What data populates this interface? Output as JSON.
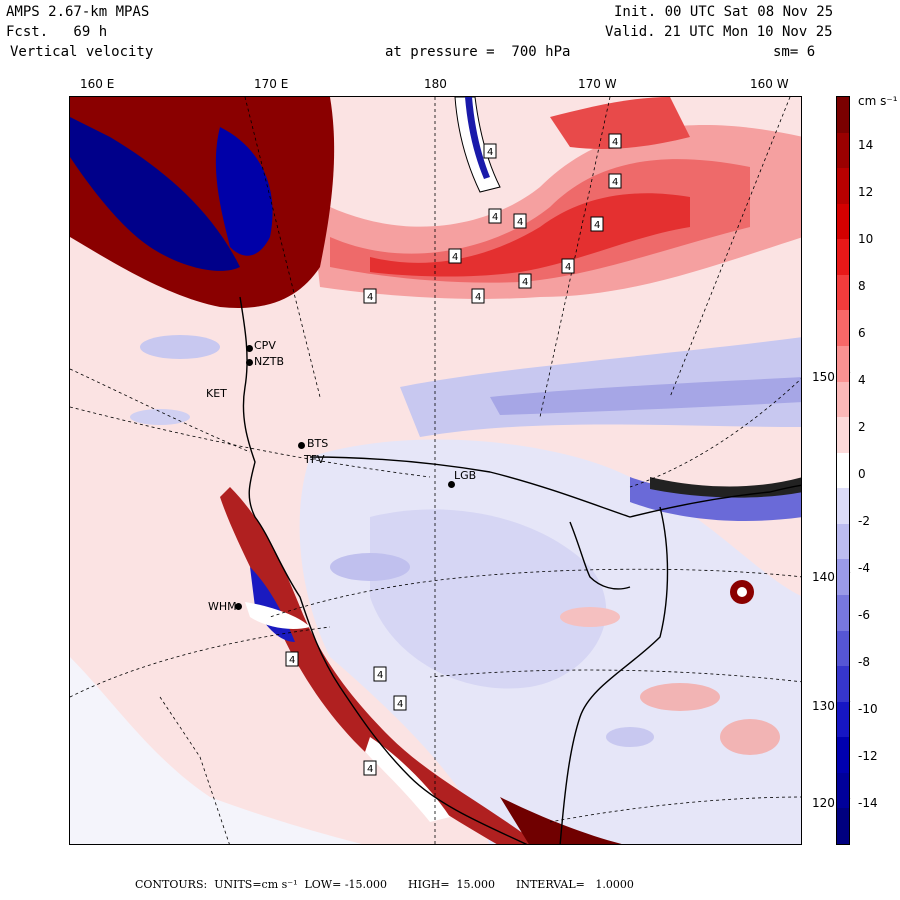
{
  "header": {
    "model": "AMPS 2.67-km MPAS",
    "forecast": "Fcst.   69 h",
    "field": "Vertical velocity",
    "init": "Init. 00 UTC Sat 08 Nov 25",
    "valid": "Valid. 21 UTC Mon 10 Nov 25",
    "level": "at pressure =  700 hPa",
    "smoothing": "sm= 6"
  },
  "map": {
    "longitude_labels": [
      "160 E",
      "170 E",
      "180",
      "170 W",
      "160 W"
    ],
    "latitude_labels": [
      "150 W",
      "140 W",
      "130 W",
      "120 W"
    ],
    "stations": [
      {
        "code": "CPV"
      },
      {
        "code": "NZTB"
      },
      {
        "code": "KET"
      },
      {
        "code": "BTS"
      },
      {
        "code": "TFV"
      },
      {
        "code": "LGB"
      },
      {
        "code": "WHM"
      }
    ],
    "contour_label": "4"
  },
  "colorbar": {
    "units": "cm s⁻¹",
    "ticks": [
      "14",
      "12",
      "10",
      "8",
      "6",
      "4",
      "2",
      "0",
      "-2",
      "-4",
      "-6",
      "-8",
      "-10",
      "-12",
      "-14"
    ],
    "colors": [
      "#7a0000",
      "#9a0000",
      "#b80000",
      "#d40000",
      "#e81818",
      "#f23c3c",
      "#f76868",
      "#fa9292",
      "#fbb8b8",
      "#fcdada",
      "#ffffff",
      "#dcdcf8",
      "#bcbcf0",
      "#9a9ae8",
      "#7878de",
      "#5656d4",
      "#3636cc",
      "#1616c4",
      "#0000b0",
      "#00009a",
      "#000080"
    ]
  },
  "footer": {
    "text": "CONTOURS:  UNITS=cm s⁻¹  LOW= -15.000      HIGH=  15.000      INTERVAL=   1.0000"
  }
}
